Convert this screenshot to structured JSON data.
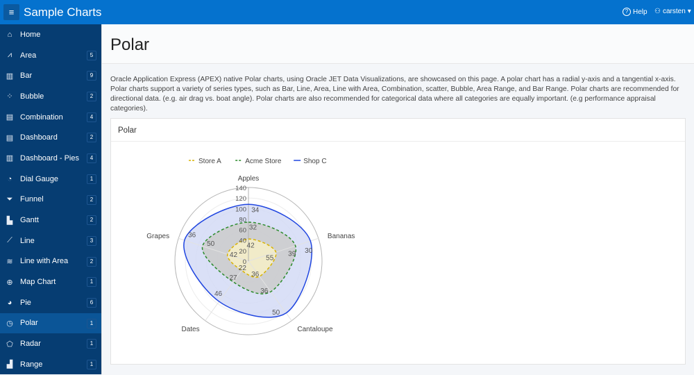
{
  "header": {
    "app_title": "Sample Charts",
    "help": "Help",
    "user": "carsten"
  },
  "sidebar": {
    "items": [
      {
        "label": "Home",
        "icon": "home-icon",
        "glyph": "⌂",
        "badge": null
      },
      {
        "label": "Area",
        "icon": "area-chart-icon",
        "glyph": "⩘",
        "badge": "5"
      },
      {
        "label": "Bar",
        "icon": "bar-chart-icon",
        "glyph": "▥",
        "badge": "9"
      },
      {
        "label": "Bubble",
        "icon": "bubble-chart-icon",
        "glyph": "⁘",
        "badge": "2"
      },
      {
        "label": "Combination",
        "icon": "combination-chart-icon",
        "glyph": "▤",
        "badge": "4"
      },
      {
        "label": "Dashboard",
        "icon": "dashboard-icon",
        "glyph": "▤",
        "badge": "2"
      },
      {
        "label": "Dashboard - Pies",
        "icon": "columns-icon",
        "glyph": "▥",
        "badge": "4"
      },
      {
        "label": "Dial Gauge",
        "icon": "gauge-icon",
        "glyph": "◔",
        "badge": "1"
      },
      {
        "label": "Funnel",
        "icon": "funnel-icon",
        "glyph": "⏷",
        "badge": "2"
      },
      {
        "label": "Gantt",
        "icon": "gantt-icon",
        "glyph": "▙",
        "badge": "2"
      },
      {
        "label": "Line",
        "icon": "line-chart-icon",
        "glyph": "⟋",
        "badge": "3"
      },
      {
        "label": "Line with Area",
        "icon": "line-area-icon",
        "glyph": "≋",
        "badge": "2"
      },
      {
        "label": "Map Chart",
        "icon": "globe-icon",
        "glyph": "⊕",
        "badge": "1"
      },
      {
        "label": "Pie",
        "icon": "pie-chart-icon",
        "glyph": "◕",
        "badge": "6"
      },
      {
        "label": "Polar",
        "icon": "polar-chart-icon",
        "glyph": "◷",
        "badge": "1",
        "active": true
      },
      {
        "label": "Radar",
        "icon": "radar-chart-icon",
        "glyph": "⬠",
        "badge": "1"
      },
      {
        "label": "Range",
        "icon": "range-chart-icon",
        "glyph": "▟",
        "badge": "1"
      }
    ]
  },
  "page": {
    "title": "Polar",
    "description": "Oracle Application Express (APEX) native Polar charts, using Oracle JET Data Visualizations, are showcased on this page. A polar chart has a radial y-axis and a tangential x-axis. Polar charts support a variety of series types, such as Bar, Line, Area, Line with Area, Combination, scatter, Bubble, Area Range, and Bar Range. Polar charts are recommended for directional data. (e.g. air drag vs. boat angle). Polar charts are also recommended for categorical data where all categories are equally important. (e.g performance appraisal categories).",
    "card_title": "Polar"
  },
  "chart_data": {
    "type": "area",
    "coordinate_system": "polar",
    "stacked": true,
    "legend_position": "top",
    "categories": [
      "Apples",
      "Bananas",
      "Cantaloupe",
      "Dates",
      "Grapes"
    ],
    "radial_ticks": [
      "0",
      "20",
      "40",
      "60",
      "80",
      "100",
      "120",
      "140"
    ],
    "ylim": [
      0,
      140
    ],
    "series": [
      {
        "name": "Store A",
        "values": [
          42,
          55,
          36,
          22,
          42
        ],
        "line": "#d9b300",
        "fill": "#f7f0c8",
        "dash": true
      },
      {
        "name": "Acme Store",
        "values": [
          32,
          39,
          36,
          27,
          50
        ],
        "line": "#2a8a2a",
        "fill": "#cbcbcb",
        "dash": true
      },
      {
        "name": "Shop C",
        "values": [
          34,
          30,
          50,
          46,
          36
        ],
        "line": "#1f45e0",
        "fill": "#d3dbf6",
        "dash": false
      }
    ]
  }
}
